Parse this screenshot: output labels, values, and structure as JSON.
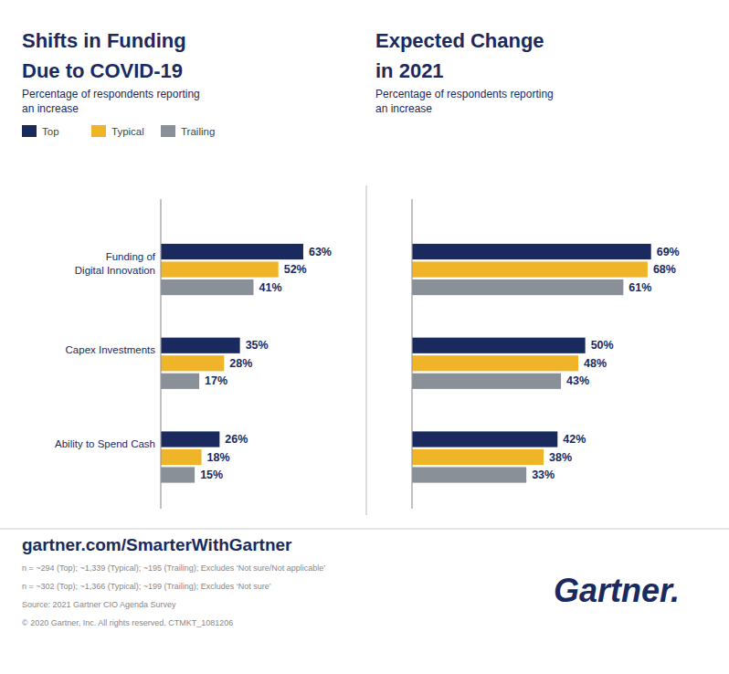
{
  "chart_data": [
    {
      "type": "bar",
      "orientation": "horizontal",
      "title": "Shifts in Funding\nDue to COVID-19",
      "subtitle": "Percentage of respondents reporting\nan increase",
      "categories": [
        "Funding of\nDigital Innovation",
        "Capex Investments",
        "Ability to Spend Cash"
      ],
      "series": [
        {
          "name": "Top",
          "color": "#1a2a5e",
          "values": [
            63,
            35,
            26
          ],
          "value_labels": [
            "63%",
            "35%",
            "26%"
          ]
        },
        {
          "name": "Typical",
          "color": "#f0b429",
          "values": [
            52,
            28,
            18
          ],
          "value_labels": [
            "52%",
            "28%",
            "18%"
          ]
        },
        {
          "name": "Trailing",
          "color": "#8a9098",
          "values": [
            41,
            17,
            15
          ],
          "value_labels": [
            "41%",
            "17%",
            "15%"
          ]
        }
      ],
      "xlim": [
        0,
        82
      ],
      "data_labels": true,
      "tick_labels": "y",
      "grid": false,
      "legend": "upper left",
      "annotations": [
        "gartner.com/SmarterWithGartner",
        "n = ~294 (Top); ~1,339 (Typical); ~195 (Trailing); Excludes ‘Not sure/Not applicable’",
        "n = ~302 (Top); ~1,366 (Typical); ~199 (Trailing); Excludes ‘Not sure’",
        "Source: 2021 Gartner CIO Agenda Survey",
        "© 2020 Gartner, Inc. All rights reserved. CTMKT_1081206",
        "Gartner."
      ]
    },
    {
      "type": "bar",
      "orientation": "horizontal",
      "title": "Expected Change\nin 2021",
      "subtitle": "Percentage of respondents reporting\nan increase",
      "categories": [
        "Funding of\nDigital Innovation",
        "Capex Investments",
        "Ability to Spend Cash"
      ],
      "series": [
        {
          "name": "Top",
          "color": "#1a2a5e",
          "values": [
            69,
            50,
            42
          ],
          "value_labels": [
            "69%",
            "50%",
            "42%"
          ]
        },
        {
          "name": "Typical",
          "color": "#f0b429",
          "values": [
            68,
            48,
            38
          ],
          "value_labels": [
            "68%",
            "48%",
            "38%"
          ]
        },
        {
          "name": "Trailing",
          "color": "#8a9098",
          "values": [
            61,
            43,
            33
          ],
          "value_labels": [
            "61%",
            "43%",
            "33%"
          ]
        }
      ],
      "xlim": [
        0,
        82
      ],
      "data_labels": true,
      "tick_labels": false,
      "grid": false
    }
  ]
}
